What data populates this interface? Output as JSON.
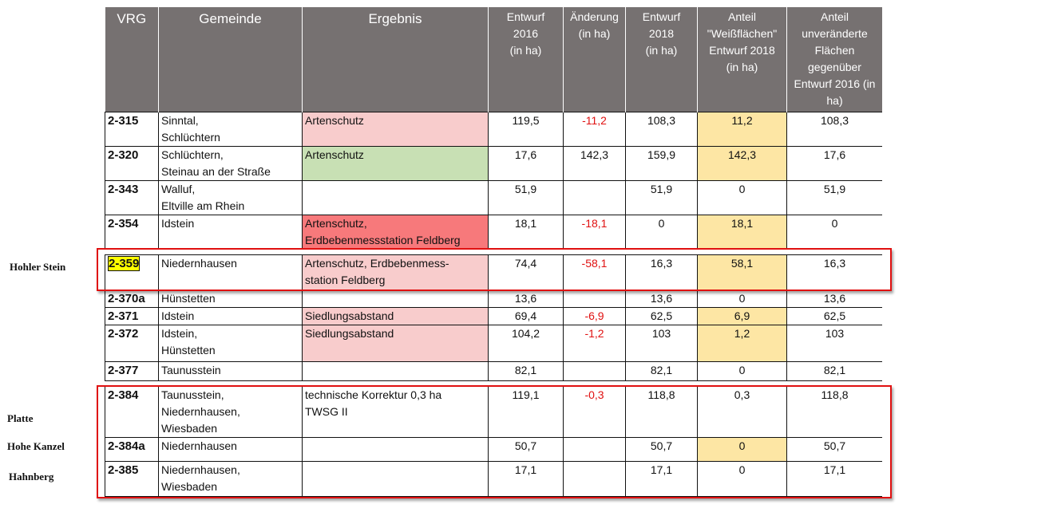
{
  "header": {
    "vrg": "VRG",
    "gemeinde": "Gemeinde",
    "ergebnis": "Ergebnis",
    "entwurf2016": [
      "Entwurf",
      "2016",
      "(in ha)"
    ],
    "aenderung": [
      "Änderung",
      "(in ha)"
    ],
    "entwurf2018": [
      "Entwurf",
      "2018",
      "(in ha)"
    ],
    "weissflaechen": [
      "Anteil",
      "\"Weißflächen\"",
      "Entwurf 2018",
      "(in ha)"
    ],
    "unveraendert": [
      "Anteil",
      "unveränderte",
      "Flächen",
      "gegenüber",
      "Entwurf 2016 (in",
      "ha)"
    ]
  },
  "rows": [
    {
      "vrg": "2-315",
      "gemeinde": [
        "Sinntal,",
        "Schlüchtern"
      ],
      "ergebnis": [
        "Artenschutz"
      ],
      "e2016": "119,5",
      "aend": "-11,2",
      "e2018": "108,3",
      "weiss": "11,2",
      "unv": "108,3"
    },
    {
      "vrg": "2-320",
      "gemeinde": [
        "Schlüchtern,",
        "Steinau an der Straße"
      ],
      "ergebnis": [
        "Artenschutz"
      ],
      "e2016": "17,6",
      "aend": "142,3",
      "e2018": "159,9",
      "weiss": "142,3",
      "unv": "17,6"
    },
    {
      "vrg": "2-343",
      "gemeinde": [
        "Walluf,",
        "Eltville am Rhein"
      ],
      "ergebnis": [
        ""
      ],
      "e2016": "51,9",
      "aend": "",
      "e2018": "51,9",
      "weiss": "0",
      "unv": "51,9"
    },
    {
      "vrg": "2-354",
      "gemeinde": [
        "Idstein"
      ],
      "ergebnis": [
        "Artenschutz,",
        "Erdbebenmessstation Feldberg"
      ],
      "e2016": "18,1",
      "aend": "-18,1",
      "e2018": "0",
      "weiss": "18,1",
      "unv": "0"
    },
    {
      "vrg": "2-359",
      "gemeinde": [
        "Niedernhausen"
      ],
      "ergebnis": [
        "Artenschutz, Erdbebenmess-",
        "station Feldberg"
      ],
      "e2016": "74,4",
      "aend": "-58,1",
      "e2018": "16,3",
      "weiss": "58,1",
      "unv": "16,3"
    },
    {
      "vrg": "2-370a",
      "gemeinde": [
        "Hünstetten"
      ],
      "ergebnis": [
        ""
      ],
      "e2016": "13,6",
      "aend": "",
      "e2018": "13,6",
      "weiss": "0",
      "unv": "13,6"
    },
    {
      "vrg": "2-371",
      "gemeinde": [
        "Idstein"
      ],
      "ergebnis": [
        "Siedlungsabstand"
      ],
      "e2016": "69,4",
      "aend": "-6,9",
      "e2018": "62,5",
      "weiss": "6,9",
      "unv": "62,5"
    },
    {
      "vrg": "2-372",
      "gemeinde": [
        "Idstein,",
        "Hünstetten"
      ],
      "ergebnis": [
        "Siedlungsabstand"
      ],
      "e2016": "104,2",
      "aend": "-1,2",
      "e2018": "103",
      "weiss": "1,2",
      "unv": "103"
    },
    {
      "vrg": "2-377",
      "gemeinde": [
        "Taunusstein"
      ],
      "ergebnis": [
        ""
      ],
      "e2016": "82,1",
      "aend": "",
      "e2018": "82,1",
      "weiss": "0",
      "unv": "82,1"
    },
    {
      "vrg": "2-384",
      "gemeinde": [
        "Taunusstein,",
        "Niedernhausen,",
        "Wiesbaden"
      ],
      "ergebnis": [
        "technische Korrektur 0,3 ha",
        "TWSG II"
      ],
      "e2016": "119,1",
      "aend": "-0,3",
      "e2018": "118,8",
      "weiss": "0,3",
      "unv": "118,8"
    },
    {
      "vrg": "2-384a",
      "gemeinde": [
        "Niedernhausen"
      ],
      "ergebnis": [
        ""
      ],
      "e2016": "50,7",
      "aend": "",
      "e2018": "50,7",
      "weiss": "0",
      "unv": "50,7"
    },
    {
      "vrg": "2-385",
      "gemeinde": [
        "Niedernhausen,",
        "Wiesbaden"
      ],
      "ergebnis": [
        ""
      ],
      "e2016": "17,1",
      "aend": "",
      "e2018": "17,1",
      "weiss": "0",
      "unv": "17,1"
    }
  ],
  "annotations": {
    "hohler_stein": "Hohler Stein",
    "platte": "Platte",
    "hohe_kanzel": "Hohe Kanzel",
    "hahnberg": "Hahnberg"
  },
  "colors": {
    "header_bg": "#767171",
    "pink": "#f8cccc",
    "green": "#c8e0b4",
    "red": "#f7797b",
    "yellow": "#fde6a4",
    "highlight": "#ffff00",
    "negative_text": "#e01010",
    "annotation_box": "#e01010"
  }
}
